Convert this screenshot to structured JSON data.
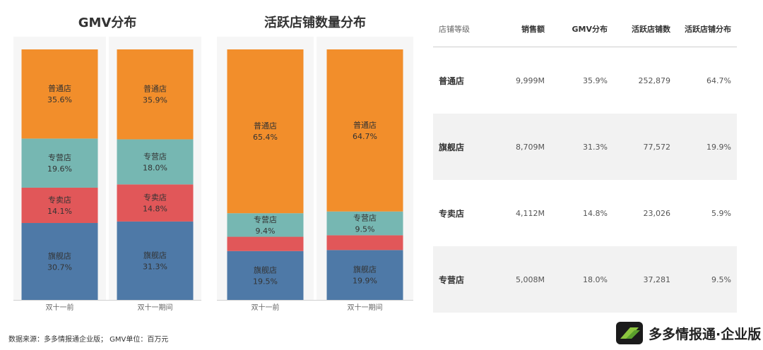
{
  "chart_data": [
    {
      "type": "bar",
      "stacked": true,
      "title": "GMV分布",
      "categories": [
        "双十一前",
        "双十一期间"
      ],
      "series": [
        {
          "name": "旗舰店",
          "values": [
            30.7,
            31.3
          ],
          "labels": [
            "30.7%",
            "31.3%"
          ]
        },
        {
          "name": "专卖店",
          "values": [
            14.1,
            14.8
          ],
          "labels": [
            "14.1%",
            "14.8%"
          ]
        },
        {
          "name": "专营店",
          "values": [
            19.6,
            18.0
          ],
          "labels": [
            "19.6%",
            "18.0%"
          ]
        },
        {
          "name": "普通店",
          "values": [
            35.6,
            35.9
          ],
          "labels": [
            "35.6%",
            "35.9%"
          ]
        }
      ],
      "ylim": [
        0,
        100
      ]
    },
    {
      "type": "bar",
      "stacked": true,
      "title": "活跃店铺数量分布",
      "categories": [
        "双十一前",
        "双十一期间"
      ],
      "series": [
        {
          "name": "旗舰店",
          "values": [
            19.5,
            19.9
          ],
          "labels": [
            "19.5%",
            "19.9%"
          ]
        },
        {
          "name": "专卖店",
          "values": [
            5.7,
            5.9
          ],
          "labels": [
            null,
            null
          ]
        },
        {
          "name": "专营店",
          "values": [
            9.4,
            9.5
          ],
          "labels": [
            "9.4%",
            "9.5%"
          ]
        },
        {
          "name": "普通店",
          "values": [
            65.4,
            64.7
          ],
          "labels": [
            "65.4%",
            "64.7%"
          ]
        }
      ],
      "ylim": [
        0,
        100
      ]
    }
  ],
  "colors": {
    "旗舰店": "#4e79a7",
    "专卖店": "#e15759",
    "专营店": "#76b7b2",
    "普通店": "#f28e2b"
  },
  "table": {
    "headers": [
      "店铺等级",
      "销售额",
      "GMV分布",
      "活跃店铺数",
      "活跃店铺分布"
    ],
    "rows": [
      [
        "普通店",
        "9,999M",
        "35.9%",
        "252,879",
        "64.7%"
      ],
      [
        "旗舰店",
        "8,709M",
        "31.3%",
        "77,572",
        "19.9%"
      ],
      [
        "专卖店",
        "4,112M",
        "14.8%",
        "23,026",
        "5.9%"
      ],
      [
        "专营店",
        "5,008M",
        "18.0%",
        "37,281",
        "9.5%"
      ]
    ]
  },
  "footer": "数据来源：多多情报通企业版； GMV单位：百万元",
  "brand": "多多情报通·企业版"
}
